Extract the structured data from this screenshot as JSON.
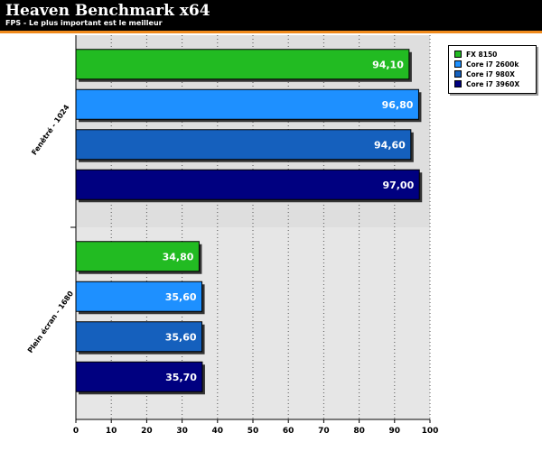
{
  "header": {
    "title": "Heaven Benchmark x64",
    "subtitle": "FPS - Le plus important est le meilleur"
  },
  "colors": {
    "header_bg": "#000000",
    "accent": "#f08a1c",
    "plot_bg_top": "#dedede",
    "plot_bg_bottom": "#e6e6e6"
  },
  "chart_data": {
    "type": "bar",
    "orientation": "horizontal",
    "title": "Heaven Benchmark x64",
    "subtitle": "FPS - Le plus important est le meilleur",
    "xlabel": "",
    "ylabel": "",
    "xlim": [
      0,
      100
    ],
    "xticks": [
      0,
      10,
      20,
      30,
      40,
      50,
      60,
      70,
      80,
      90,
      100
    ],
    "grid": true,
    "legend_position": "top-right",
    "categories": [
      "Fenêtré - 1024",
      "Plein écran - 1680"
    ],
    "series": [
      {
        "name": "FX 8150",
        "color": "#22bb22",
        "values": [
          94.1,
          34.8
        ],
        "labels": [
          "94,10",
          "34,80"
        ]
      },
      {
        "name": "Core i7 2600k",
        "color": "#1e90ff",
        "values": [
          96.8,
          35.6
        ],
        "labels": [
          "96,80",
          "35,60"
        ]
      },
      {
        "name": "Core i7 980X",
        "color": "#1560bd",
        "values": [
          94.6,
          35.6
        ],
        "labels": [
          "94,60",
          "35,60"
        ]
      },
      {
        "name": "Core i7 3960X",
        "color": "#000080",
        "values": [
          97.0,
          35.7
        ],
        "labels": [
          "97,00",
          "35,70"
        ]
      }
    ]
  }
}
